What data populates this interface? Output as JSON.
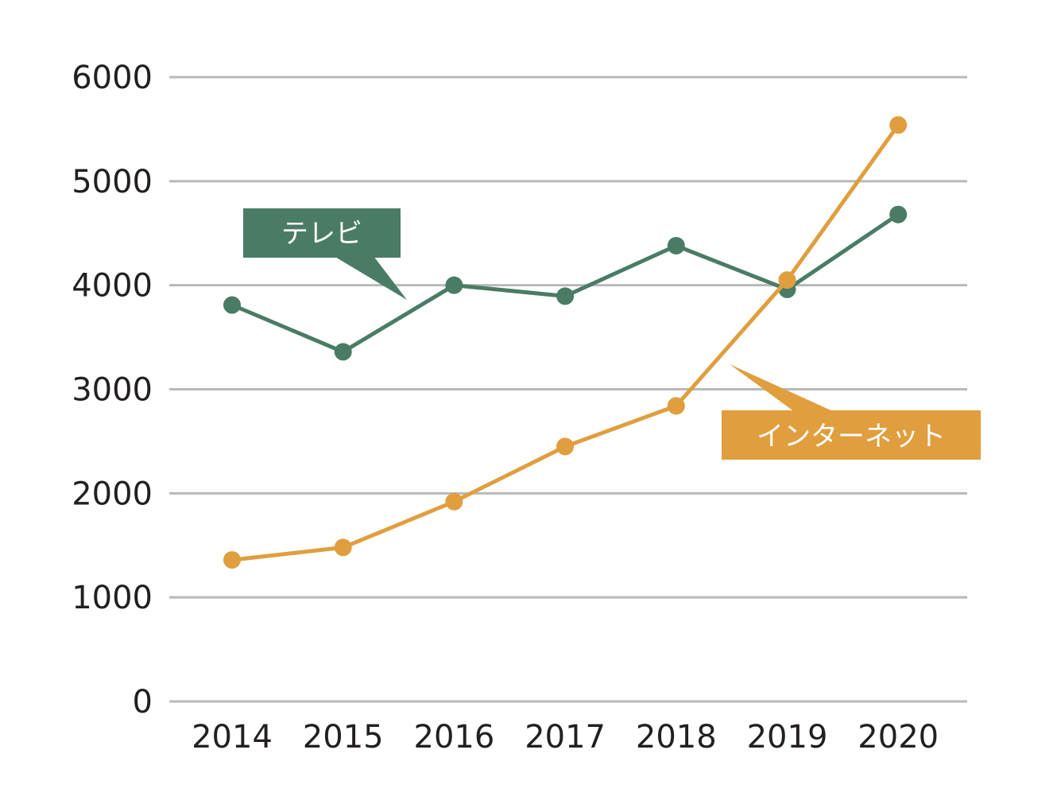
{
  "chart_data": {
    "type": "line",
    "categories": [
      "2014",
      "2015",
      "2016",
      "2017",
      "2018",
      "2019",
      "2020"
    ],
    "series": [
      {
        "name": "テレビ",
        "color": "#4a7c65",
        "values": [
          3810,
          3360,
          4000,
          3895,
          4380,
          3960,
          4680
        ]
      },
      {
        "name": "インターネット",
        "color": "#e09e3e",
        "values": [
          1360,
          1480,
          1920,
          2450,
          2840,
          4050,
          5540
        ]
      }
    ],
    "title": "",
    "xlabel": "",
    "ylabel": "",
    "ylim": [
      0,
      6000
    ],
    "yticks": [
      "0",
      "1000",
      "2000",
      "3000",
      "4000",
      "5000",
      "6000"
    ],
    "grid": true,
    "grid_color": "#b8b9bc",
    "legend": "callout labels on the lines"
  }
}
